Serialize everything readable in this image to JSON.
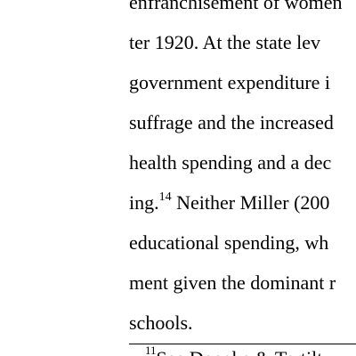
{
  "body_lines": [
    "enfranchisement of women",
    "ter 1920.  At the state lev",
    "government expenditure i",
    "suffrage and the increased",
    "health spending and a dec",
    "ing.",
    "educational spending, wh",
    "ment given the dominant r",
    "schools."
  ],
  "line6_ref": "14",
  "line6_tail": " Neither Miller (200",
  "footnote": {
    "marker": "11",
    "text": "See Doepke & Tertilt"
  }
}
